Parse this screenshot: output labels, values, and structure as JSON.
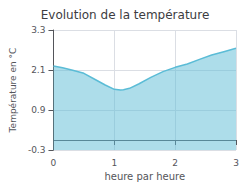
{
  "chart_data": {
    "type": "area",
    "title": "Evolution de la température",
    "xlabel": "heure par heure",
    "ylabel": "Température en °C",
    "x": [
      0,
      0.15,
      0.3,
      0.5,
      0.7,
      0.85,
      1.0,
      1.1,
      1.15,
      1.25,
      1.4,
      1.6,
      1.8,
      2.0,
      2.2,
      2.4,
      2.6,
      2.8,
      3.0
    ],
    "values": [
      2.22,
      2.17,
      2.1,
      2.0,
      1.8,
      1.65,
      1.52,
      1.5,
      1.51,
      1.55,
      1.68,
      1.88,
      2.05,
      2.18,
      2.28,
      2.42,
      2.55,
      2.65,
      2.75
    ],
    "color": "#5bbcd6",
    "xlim": [
      0,
      3
    ],
    "xticks": [
      0,
      1,
      2,
      3
    ],
    "ylim": [
      -0.3,
      3.3
    ],
    "yticks": [
      -0.3,
      0.9,
      2.1,
      3.3
    ],
    "grid": true
  }
}
